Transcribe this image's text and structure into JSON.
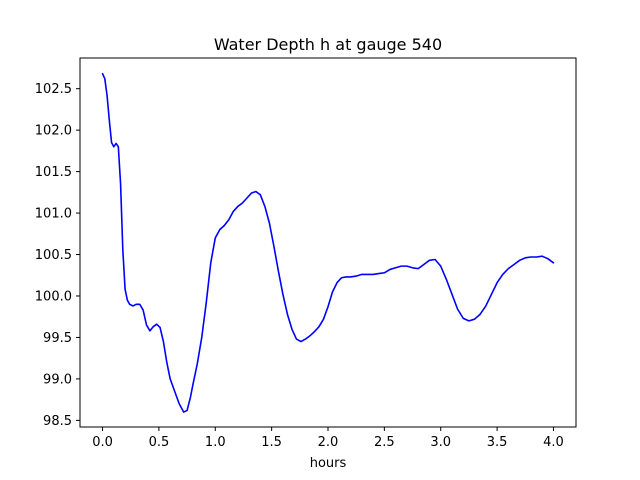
{
  "chart_data": {
    "type": "line",
    "title": "Water Depth h at gauge 540",
    "xlabel": "hours",
    "ylabel": "",
    "xlim": [
      -0.2,
      4.2
    ],
    "ylim": [
      98.42,
      102.87
    ],
    "xticks": [
      0.0,
      0.5,
      1.0,
      1.5,
      2.0,
      2.5,
      3.0,
      3.5,
      4.0
    ],
    "xtick_labels": [
      "0.0",
      "0.5",
      "1.0",
      "1.5",
      "2.0",
      "2.5",
      "3.0",
      "3.5",
      "4.0"
    ],
    "yticks": [
      98.5,
      99.0,
      99.5,
      100.0,
      100.5,
      101.0,
      101.5,
      102.0,
      102.5
    ],
    "ytick_labels": [
      "98.5",
      "99.0",
      "99.5",
      "100.0",
      "100.5",
      "101.0",
      "101.5",
      "102.0",
      "102.5"
    ],
    "grid": false,
    "series": [
      {
        "color": "#0000ff",
        "x": [
          0.0,
          0.02,
          0.04,
          0.06,
          0.08,
          0.1,
          0.12,
          0.14,
          0.16,
          0.18,
          0.2,
          0.22,
          0.24,
          0.27,
          0.3,
          0.33,
          0.36,
          0.39,
          0.42,
          0.45,
          0.48,
          0.51,
          0.54,
          0.57,
          0.6,
          0.64,
          0.68,
          0.72,
          0.75,
          0.78,
          0.8,
          0.84,
          0.88,
          0.92,
          0.96,
          1.0,
          1.04,
          1.08,
          1.12,
          1.16,
          1.2,
          1.24,
          1.28,
          1.32,
          1.36,
          1.4,
          1.44,
          1.48,
          1.52,
          1.56,
          1.6,
          1.64,
          1.68,
          1.72,
          1.76,
          1.8,
          1.84,
          1.88,
          1.92,
          1.96,
          2.0,
          2.04,
          2.08,
          2.12,
          2.16,
          2.2,
          2.25,
          2.3,
          2.35,
          2.4,
          2.45,
          2.5,
          2.55,
          2.6,
          2.65,
          2.7,
          2.75,
          2.8,
          2.85,
          2.9,
          2.95,
          3.0,
          3.05,
          3.1,
          3.15,
          3.2,
          3.25,
          3.3,
          3.35,
          3.4,
          3.45,
          3.5,
          3.55,
          3.6,
          3.65,
          3.7,
          3.75,
          3.8,
          3.85,
          3.9,
          3.95,
          4.0
        ],
        "y": [
          102.68,
          102.62,
          102.42,
          102.12,
          101.85,
          101.8,
          101.84,
          101.8,
          101.35,
          100.55,
          100.08,
          99.95,
          99.9,
          99.88,
          99.9,
          99.9,
          99.83,
          99.65,
          99.58,
          99.63,
          99.66,
          99.62,
          99.45,
          99.2,
          99.0,
          98.85,
          98.7,
          98.6,
          98.62,
          98.78,
          98.92,
          99.18,
          99.5,
          99.92,
          100.4,
          100.7,
          100.8,
          100.85,
          100.92,
          101.02,
          101.08,
          101.12,
          101.18,
          101.24,
          101.26,
          101.22,
          101.08,
          100.88,
          100.6,
          100.3,
          100.02,
          99.78,
          99.6,
          99.48,
          99.45,
          99.48,
          99.52,
          99.57,
          99.63,
          99.72,
          99.87,
          100.05,
          100.16,
          100.22,
          100.23,
          100.23,
          100.24,
          100.26,
          100.26,
          100.26,
          100.27,
          100.28,
          100.32,
          100.34,
          100.36,
          100.36,
          100.34,
          100.33,
          100.38,
          100.43,
          100.44,
          100.36,
          100.2,
          100.02,
          99.84,
          99.73,
          99.7,
          99.72,
          99.78,
          99.88,
          100.02,
          100.16,
          100.26,
          100.33,
          100.38,
          100.43,
          100.46,
          100.47,
          100.47,
          100.48,
          100.45,
          100.4
        ]
      }
    ]
  }
}
